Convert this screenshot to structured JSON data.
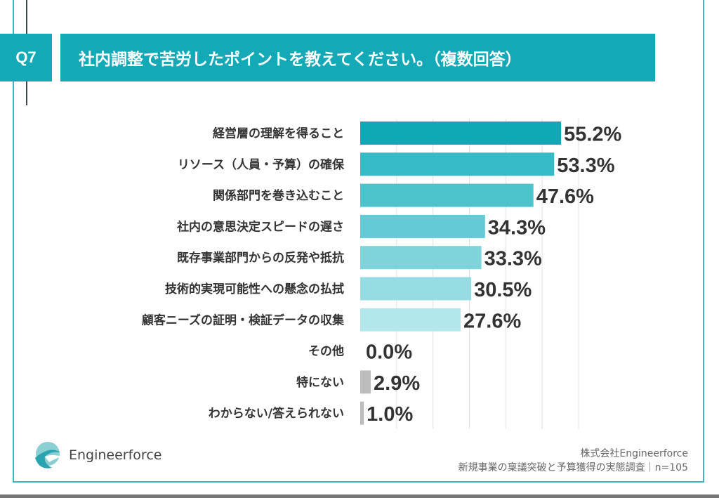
{
  "header": {
    "question_number": "Q7",
    "title": "社内調整で苦労したポイントを教えてください。（複数回答）"
  },
  "chart_data": {
    "type": "bar",
    "orientation": "horizontal",
    "categories": [
      "経営層の理解を得ること",
      "リソース（人員・予算）の確保",
      "関係部門を巻き込むこと",
      "社内の意思決定スピードの遅さ",
      "既存事業部門からの反発や抵抗",
      "技術的実現可能性への懸念の払拭",
      "顧客ニーズの証明・検証データの収集",
      "その他",
      "特にない",
      "わからない/答えられない"
    ],
    "values": [
      55.2,
      53.3,
      47.6,
      34.3,
      33.3,
      30.5,
      27.6,
      0.0,
      2.9,
      1.0
    ],
    "value_labels": [
      "55.2%",
      "53.3%",
      "47.6%",
      "34.3%",
      "33.3%",
      "30.5%",
      "27.6%",
      "0.0%",
      "2.9%",
      "1.0%"
    ],
    "colors": [
      "#0fa9b5",
      "#36bac5",
      "#4dc3cc",
      "#63cbd3",
      "#7dd4db",
      "#95dde2",
      "#b3e8eb",
      "#bdbdbd",
      "#bdbdbd",
      "#bdbdbd"
    ],
    "xlim": [
      0,
      60
    ],
    "grid": true
  },
  "footer": {
    "logo_text": "Engineerforce",
    "company": "株式会社Engineerforce",
    "survey": "新規事業の稟議突破と予算獲得の実態調査｜n=105"
  }
}
